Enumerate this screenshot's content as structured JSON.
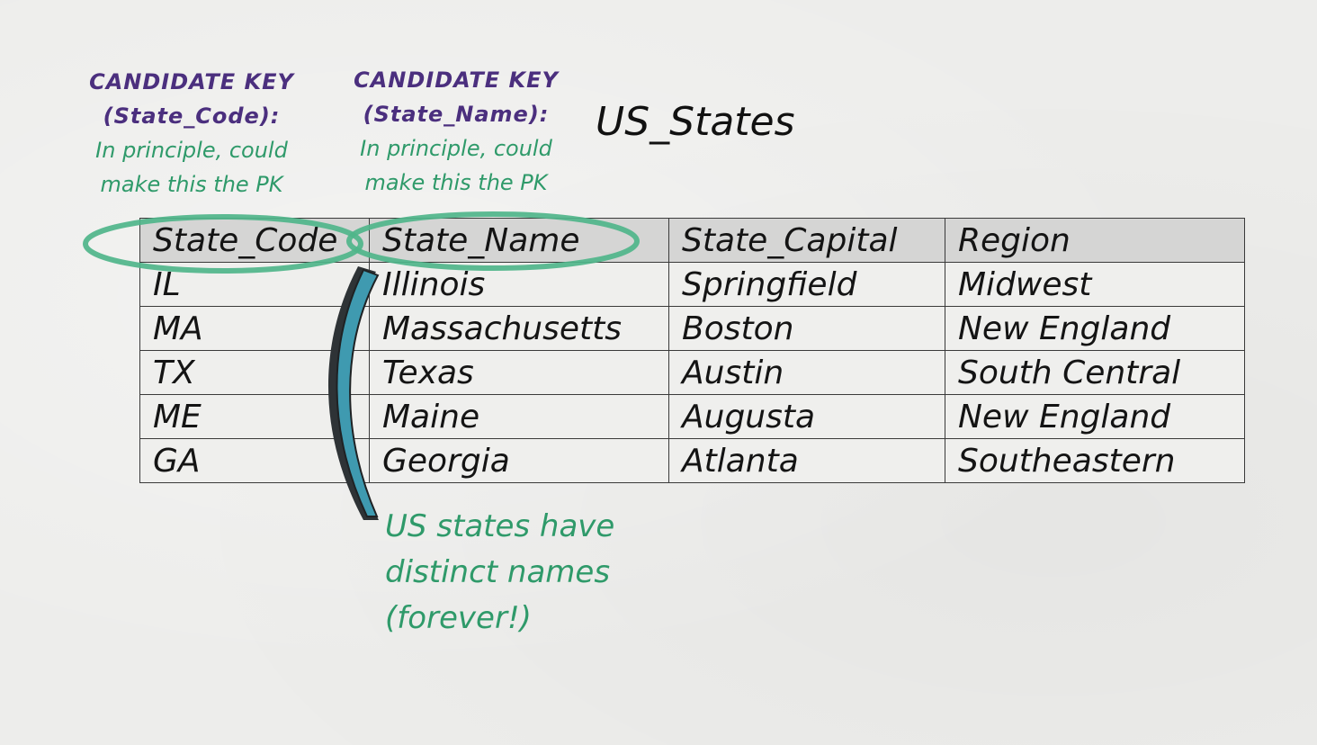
{
  "title": "US_States",
  "candidate_keys": [
    {
      "heading_line1": "CANDIDATE KEY",
      "heading_line2": "(State_Code):",
      "note_line1": "In principle, could",
      "note_line2": "make this the PK"
    },
    {
      "heading_line1": "CANDIDATE KEY",
      "heading_line2": "(State_Name):",
      "note_line1": "In principle, could",
      "note_line2": "make this the PK"
    }
  ],
  "table": {
    "columns": [
      "State_Code",
      "State_Name",
      "State_Capital",
      "Region"
    ],
    "rows": [
      [
        "IL",
        "Illinois",
        "Springfield",
        "Midwest"
      ],
      [
        "MA",
        "Massachusetts",
        "Boston",
        "New England"
      ],
      [
        "TX",
        "Texas",
        "Austin",
        "South Central"
      ],
      [
        "ME",
        "Maine",
        "Augusta",
        "New England"
      ],
      [
        "GA",
        "Georgia",
        "Atlanta",
        "Southeastern"
      ]
    ]
  },
  "annotation": {
    "line1": "US states have",
    "line2": "distinct names",
    "line3": "(forever!)"
  },
  "colors": {
    "key_heading": "#4b2f7e",
    "annotation_green": "#2f9a6a",
    "ellipse_green": "#4fb58a",
    "bracket_teal": "#3f9ab0"
  }
}
